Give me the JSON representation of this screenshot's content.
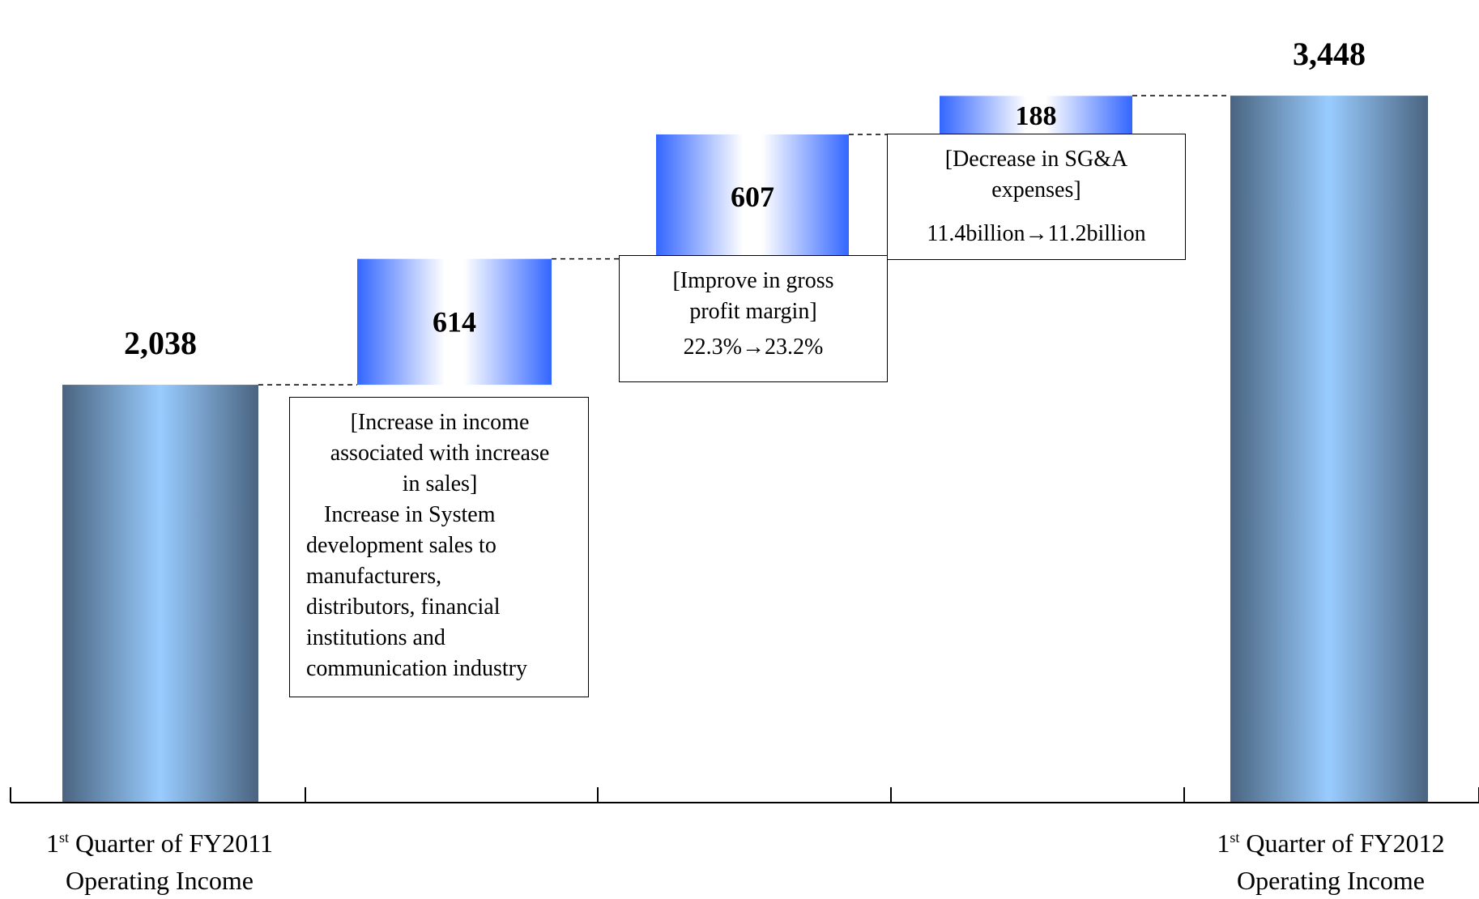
{
  "chart_data": {
    "type": "bar",
    "subtype": "waterfall",
    "categories": [
      "1st Quarter of FY2011 Operating Income",
      "Increase in income associated with increase in sales",
      "Improve in gross profit margin",
      "Decrease in SG&A expenses",
      "1st Quarter of FY2012 Operating Income"
    ],
    "values": [
      2038,
      614,
      607,
      188,
      3448
    ],
    "value_labels": [
      "2,038",
      "614",
      "607",
      "188",
      "3,448"
    ],
    "kinds": [
      "total",
      "increase",
      "increase",
      "increase",
      "total"
    ],
    "ylim": [
      0,
      3650
    ],
    "grid": false,
    "colors": {
      "total_edge": "#4a6480",
      "total_center": "#99ccff",
      "step_edge": "#3366ff",
      "step_center": "#ffffff"
    }
  },
  "x_labels": [
    {
      "sup": "st",
      "num": "1",
      "line1_rest": " Quarter of FY2011",
      "line2": "Operating Income"
    },
    {
      "sup": "st",
      "num": "1",
      "line1_rest": " Quarter of FY2012",
      "line2": "Operating Income"
    }
  ],
  "notes": {
    "sales": {
      "title_lines": [
        "[Increase in income",
        "associated with increase",
        "in sales]"
      ],
      "body_lines": [
        "Increase in System",
        "development sales to",
        "manufacturers,",
        "distributors, financial",
        "institutions and",
        "communication industry"
      ]
    },
    "margin": {
      "title_lines": [
        "[Improve in gross",
        "profit margin]"
      ],
      "detail": "22.3%→23.2%"
    },
    "sga": {
      "title_lines": [
        "[Decrease in SG&A",
        "expenses]"
      ],
      "detail": "11.4billion→11.2billion"
    }
  }
}
